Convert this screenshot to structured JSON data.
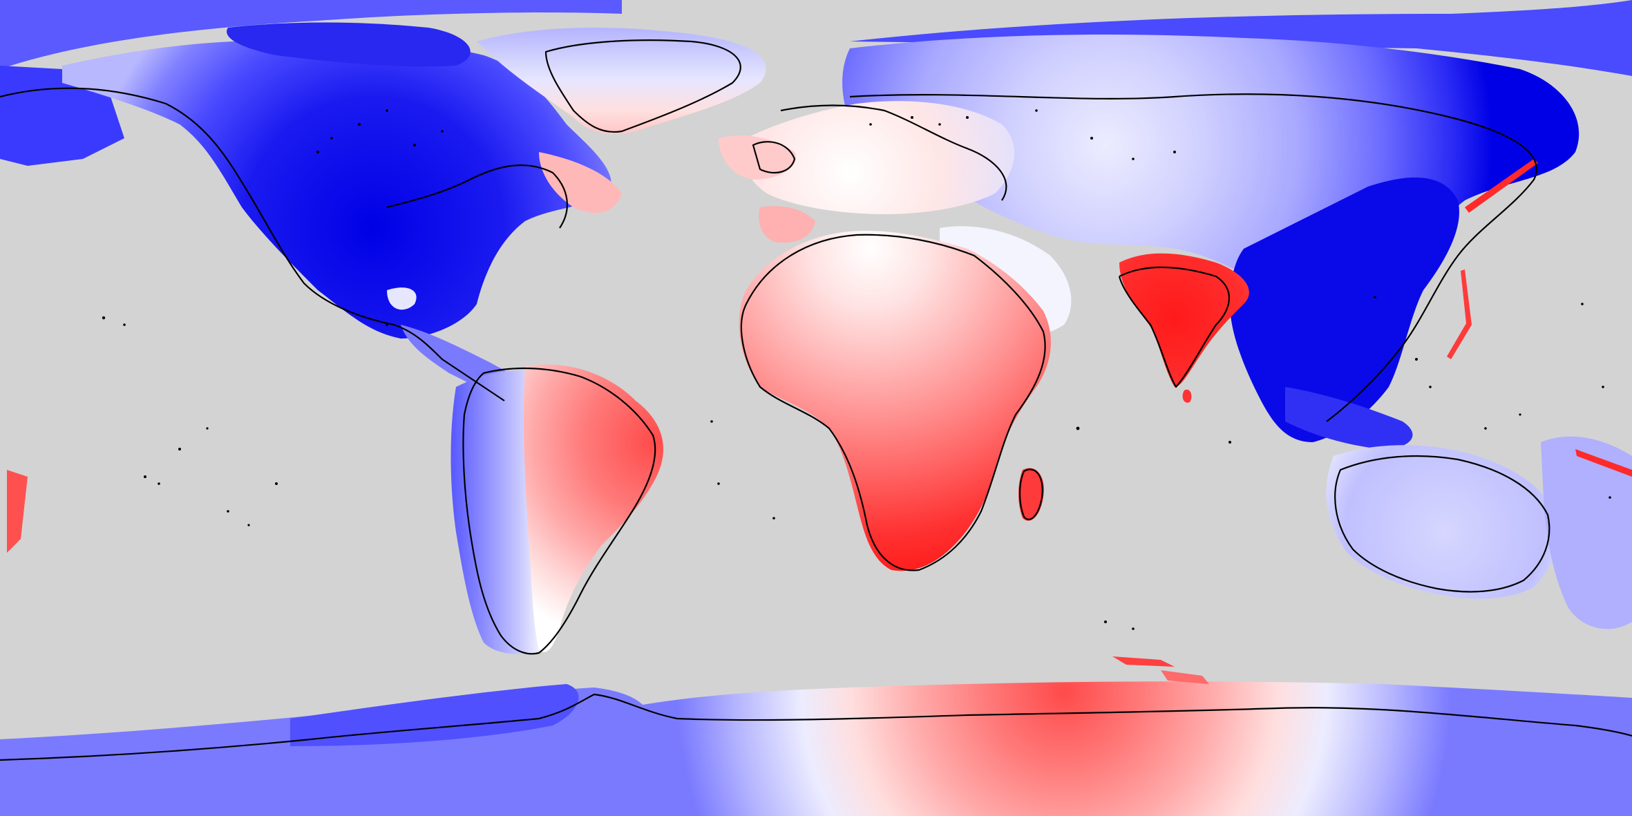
{
  "map": {
    "projection": "equirectangular",
    "coverage": "global",
    "ocean_color": "#d3d3d3",
    "coastline_color": "#000000",
    "color_scale": {
      "type": "diverging",
      "negative": [
        "#0000e6",
        "#3a3aff",
        "#7070ff",
        "#a8a8ff",
        "#d8d8ff"
      ],
      "neutral": "#ffffff",
      "positive": [
        "#ffd6d6",
        "#ffb0b0",
        "#ff8888",
        "#ff5c5c",
        "#ff2020"
      ]
    },
    "regions": [
      {
        "name": "north-america",
        "sign": "negative"
      },
      {
        "name": "greenland",
        "sign": "neutral"
      },
      {
        "name": "europe",
        "sign": "mixed"
      },
      {
        "name": "north-asia",
        "sign": "negative"
      },
      {
        "name": "east-asia",
        "sign": "negative"
      },
      {
        "name": "africa",
        "sign": "positive"
      },
      {
        "name": "arabia",
        "sign": "neutral"
      },
      {
        "name": "india",
        "sign": "positive"
      },
      {
        "name": "south-america-east",
        "sign": "positive"
      },
      {
        "name": "south-america-west",
        "sign": "negative"
      },
      {
        "name": "australia",
        "sign": "negative"
      },
      {
        "name": "antarctica-east",
        "sign": "positive"
      },
      {
        "name": "antarctica-west",
        "sign": "negative"
      }
    ]
  }
}
